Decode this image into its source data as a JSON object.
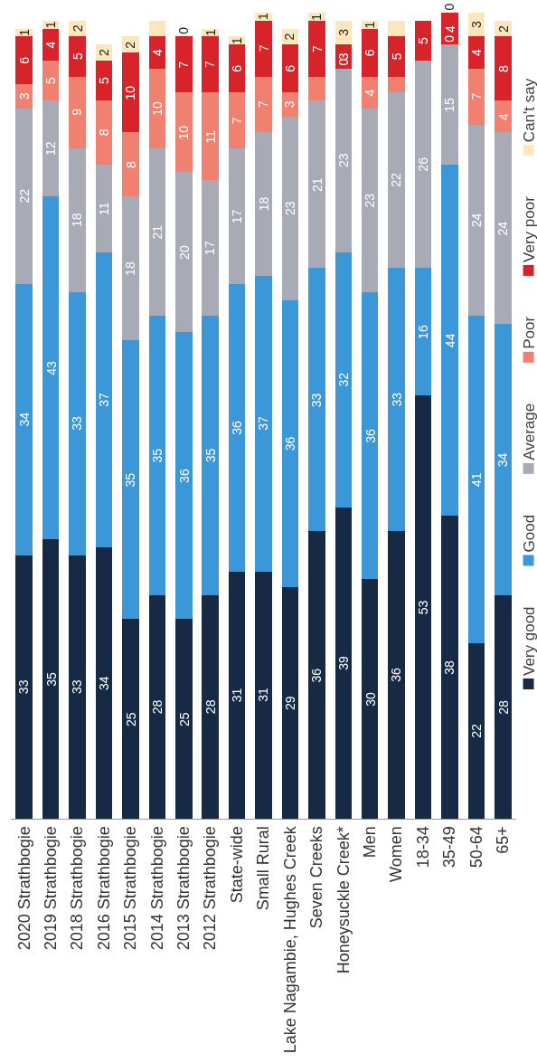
{
  "chart_data": {
    "type": "bar",
    "stacked": true,
    "legend": "right",
    "tick_labels": "x",
    "categories": [
      "2020 Strathbogie",
      "2019 Strathbogie",
      "2018 Strathbogie",
      "2016 Strathbogie",
      "2015 Strathbogie",
      "2014 Strathbogie",
      "2013 Strathbogie",
      "2012 Strathbogie",
      "State-wide",
      "Small Rural",
      "Lake Nagambie, Hughes Creek",
      "Seven Creeks",
      "Honeysuckle Creek*",
      "Men",
      "Women",
      "18-34",
      "35-49",
      "50-64",
      "65+"
    ],
    "series": [
      {
        "name": "Very good",
        "color": "#172a45",
        "values": [
          33,
          35,
          33,
          34,
          25,
          28,
          25,
          28,
          31,
          31,
          29,
          36,
          39,
          30,
          36,
          53,
          38,
          22,
          28
        ],
        "value_labels": [
          "33",
          "35",
          "33",
          "34",
          "25",
          "28",
          "25",
          "28",
          "31",
          "31",
          "29",
          "36",
          "39",
          "30",
          "36",
          "53",
          "38",
          "22",
          "28"
        ]
      },
      {
        "name": "Good",
        "color": "#3b97d8",
        "values": [
          34,
          43,
          33,
          37,
          35,
          35,
          36,
          35,
          36,
          37,
          36,
          33,
          32,
          36,
          33,
          16,
          44,
          41,
          34
        ],
        "value_labels": [
          "34",
          "43",
          "33",
          "37",
          "35",
          "35",
          "36",
          "35",
          "36",
          "37",
          "36",
          "33",
          "32",
          "36",
          "33",
          "16",
          "44",
          "41",
          "34"
        ]
      },
      {
        "name": "Average",
        "color": "#a8aab6",
        "values": [
          22,
          12,
          18,
          11,
          18,
          21,
          20,
          17,
          17,
          18,
          23,
          21,
          23,
          23,
          22,
          26,
          15,
          24,
          24
        ],
        "value_labels": [
          "22",
          "12",
          "18",
          "11",
          "18",
          "21",
          "20",
          "17",
          "17",
          "18",
          "23",
          "21",
          "23",
          "23",
          "22",
          "26",
          "15",
          "24",
          "24"
        ]
      },
      {
        "name": "Poor",
        "color": "#f08070",
        "values": [
          3,
          5,
          9,
          8,
          8,
          10,
          10,
          11,
          7,
          7,
          3,
          3,
          0,
          4,
          2,
          null,
          0,
          7,
          4
        ],
        "value_labels": [
          "3",
          "5",
          "9",
          "8",
          "8",
          "10",
          "10",
          "11",
          "7",
          "7",
          "3",
          null,
          "0",
          "4",
          null,
          null,
          "0",
          "7",
          "4"
        ]
      },
      {
        "name": "Very poor",
        "color": "#d7242a",
        "values": [
          6,
          4,
          5,
          5,
          10,
          4,
          7,
          7,
          6,
          7,
          6,
          7,
          3,
          6,
          5,
          5,
          4,
          4,
          8
        ],
        "value_labels": [
          "6",
          "4",
          "5",
          "5",
          "10",
          "4",
          "7",
          "7",
          "6",
          "7",
          "6",
          "7",
          "3",
          "6",
          "5",
          "5",
          "4",
          "4",
          "8"
        ]
      },
      {
        "name": "Can't say",
        "color": "#fce6bd",
        "values": [
          1,
          1,
          2,
          2,
          2,
          2,
          0,
          1,
          1,
          1,
          2,
          1,
          3,
          1,
          2,
          null,
          0,
          3,
          2
        ],
        "value_labels": [
          "1",
          "1",
          "2",
          "2",
          "2",
          null,
          "0",
          "1",
          "1",
          "1",
          "2",
          "1",
          "3",
          "1",
          null,
          null,
          "0",
          "3",
          "2"
        ]
      }
    ]
  }
}
